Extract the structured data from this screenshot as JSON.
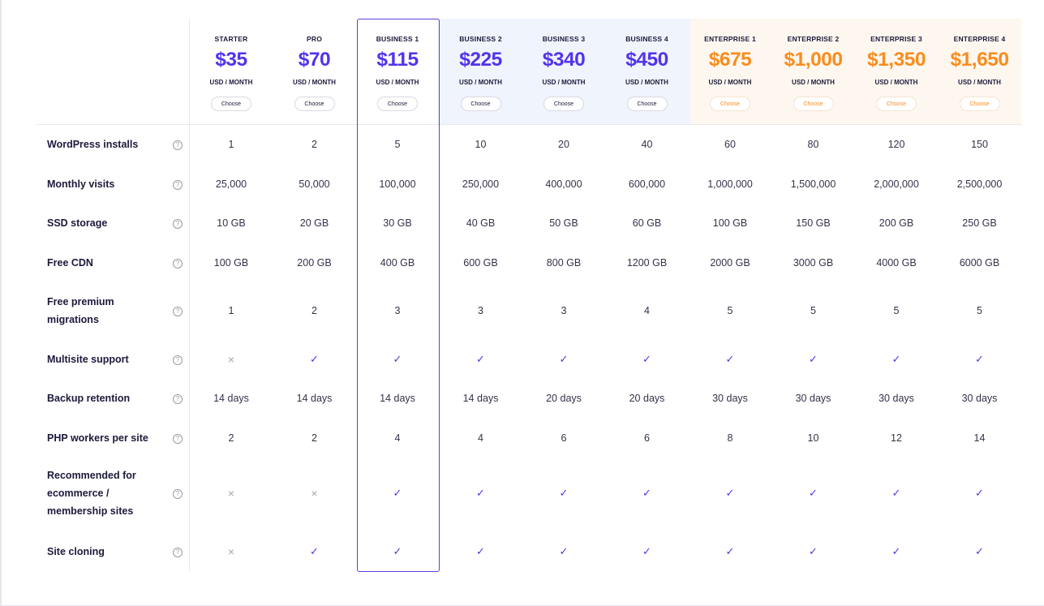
{
  "plans": [
    {
      "name": "STARTER",
      "price": "$35",
      "unit": "USD / MONTH",
      "choose": "Choose",
      "tier": "starter"
    },
    {
      "name": "PRO",
      "price": "$70",
      "unit": "USD / MONTH",
      "choose": "Choose",
      "tier": "pro"
    },
    {
      "name": "BUSINESS 1",
      "price": "$115",
      "unit": "USD / MONTH",
      "choose": "Choose",
      "tier": "business"
    },
    {
      "name": "BUSINESS 2",
      "price": "$225",
      "unit": "USD / MONTH",
      "choose": "Choose",
      "tier": "business"
    },
    {
      "name": "BUSINESS 3",
      "price": "$340",
      "unit": "USD / MONTH",
      "choose": "Choose",
      "tier": "business"
    },
    {
      "name": "BUSINESS 4",
      "price": "$450",
      "unit": "USD / MONTH",
      "choose": "Choose",
      "tier": "business"
    },
    {
      "name": "ENTERPRISE 1",
      "price": "$675",
      "unit": "USD / MONTH",
      "choose": "Choose",
      "tier": "enterprise"
    },
    {
      "name": "ENTERPRISE 2",
      "price": "$1,000",
      "unit": "USD / MONTH",
      "choose": "Choose",
      "tier": "enterprise"
    },
    {
      "name": "ENTERPRISE 3",
      "price": "$1,350",
      "unit": "USD / MONTH",
      "choose": "Choose",
      "tier": "enterprise"
    },
    {
      "name": "ENTERPRISE 4",
      "price": "$1,650",
      "unit": "USD / MONTH",
      "choose": "Choose",
      "tier": "enterprise"
    }
  ],
  "highlighted_plan": "BUSINESS 1",
  "features": [
    {
      "label": "WordPress installs",
      "values": [
        "1",
        "2",
        "5",
        "10",
        "20",
        "40",
        "60",
        "80",
        "120",
        "150"
      ]
    },
    {
      "label": "Monthly visits",
      "values": [
        "25,000",
        "50,000",
        "100,000",
        "250,000",
        "400,000",
        "600,000",
        "1,000,000",
        "1,500,000",
        "2,000,000",
        "2,500,000"
      ]
    },
    {
      "label": "SSD storage",
      "values": [
        "10 GB",
        "20 GB",
        "30 GB",
        "40 GB",
        "50 GB",
        "60 GB",
        "100 GB",
        "150 GB",
        "200 GB",
        "250 GB"
      ]
    },
    {
      "label": "Free CDN",
      "values": [
        "100 GB",
        "200 GB",
        "400 GB",
        "600 GB",
        "800 GB",
        "1200 GB",
        "2000 GB",
        "3000 GB",
        "4000 GB",
        "6000 GB"
      ]
    },
    {
      "label": "Free premium migrations",
      "values": [
        "1",
        "2",
        "3",
        "3",
        "3",
        "4",
        "5",
        "5",
        "5",
        "5"
      ]
    },
    {
      "label": "Multisite support",
      "values": [
        "×",
        "✓",
        "✓",
        "✓",
        "✓",
        "✓",
        "✓",
        "✓",
        "✓",
        "✓"
      ]
    },
    {
      "label": "Backup retention",
      "values": [
        "14 days",
        "14 days",
        "14 days",
        "14 days",
        "20 days",
        "20 days",
        "30 days",
        "30 days",
        "30 days",
        "30 days"
      ]
    },
    {
      "label": "PHP workers per site",
      "values": [
        "2",
        "2",
        "4",
        "4",
        "6",
        "6",
        "8",
        "10",
        "12",
        "14"
      ]
    },
    {
      "label": "Recommended for ecommerce / membership sites",
      "values": [
        "×",
        "×",
        "✓",
        "✓",
        "✓",
        "✓",
        "✓",
        "✓",
        "✓",
        "✓"
      ]
    },
    {
      "label": "Site cloning",
      "values": [
        "×",
        "✓",
        "✓",
        "✓",
        "✓",
        "✓",
        "✓",
        "✓",
        "✓",
        "✓"
      ]
    }
  ],
  "icons": {
    "help": "question-circle-icon",
    "check": "checkmark-icon",
    "cross": "cross-icon"
  },
  "colors": {
    "accent": "#5333ed",
    "enterprise": "#fa8c1e",
    "business_band": "#eff4fd",
    "enterprise_band": "#fef7ef",
    "text": "#1c1a3b"
  }
}
